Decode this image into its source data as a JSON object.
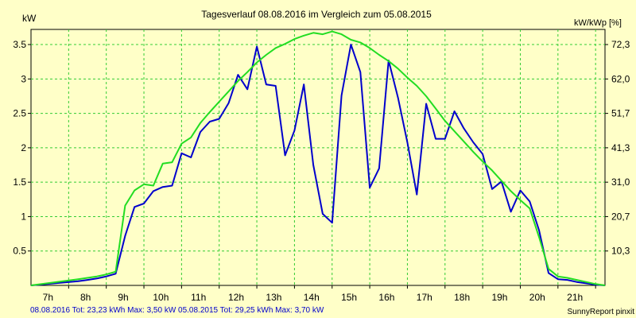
{
  "chart_data": {
    "type": "line",
    "title": "Tagesverlauf 08.08.2016 im Vergleich zum 05.08.2015",
    "ylabel_left": "kW",
    "ylabel_right": "kW/kWp [%]",
    "xlim": [
      6.0,
      21.25
    ],
    "ylim": [
      0,
      3.72
    ],
    "x_ticks": [
      {
        "x": 7,
        "label": "7h"
      },
      {
        "x": 8,
        "label": "8h"
      },
      {
        "x": 9,
        "label": "9h"
      },
      {
        "x": 10,
        "label": "10h"
      },
      {
        "x": 11,
        "label": "11h"
      },
      {
        "x": 12,
        "label": "12h"
      },
      {
        "x": 13,
        "label": "13h"
      },
      {
        "x": 14,
        "label": "14h"
      },
      {
        "x": 15,
        "label": "15h"
      },
      {
        "x": 16,
        "label": "16h"
      },
      {
        "x": 17,
        "label": "17h"
      },
      {
        "x": 18,
        "label": "18h"
      },
      {
        "x": 19,
        "label": "19h"
      },
      {
        "x": 20,
        "label": "20h"
      },
      {
        "x": 21,
        "label": "21h"
      }
    ],
    "y_ticks_left": [
      {
        "y": 0.5,
        "label": "0.5"
      },
      {
        "y": 1,
        "label": "1"
      },
      {
        "y": 1.5,
        "label": "1.5"
      },
      {
        "y": 2,
        "label": "2"
      },
      {
        "y": 2.5,
        "label": "2.5"
      },
      {
        "y": 3,
        "label": "3"
      },
      {
        "y": 3.5,
        "label": "3.5"
      }
    ],
    "y_ticks_right": [
      {
        "y": 0.5,
        "label": "10,3"
      },
      {
        "y": 1,
        "label": "20,7"
      },
      {
        "y": 1.5,
        "label": "31,0"
      },
      {
        "y": 2,
        "label": "41,3"
      },
      {
        "y": 2.5,
        "label": "51,7"
      },
      {
        "y": 3,
        "label": "62,0"
      },
      {
        "y": 3.5,
        "label": "72,3"
      }
    ],
    "grid": true,
    "series": [
      {
        "name": "08.08.2016",
        "color": "#0000CC",
        "x": [
          6.0,
          7.25,
          7.5,
          7.75,
          8.0,
          8.25,
          8.5,
          8.75,
          9.0,
          9.25,
          9.5,
          9.75,
          10.0,
          10.25,
          10.5,
          10.75,
          11.0,
          11.25,
          11.5,
          11.75,
          12.0,
          12.25,
          12.5,
          12.75,
          13.0,
          13.25,
          13.5,
          13.75,
          14.0,
          14.25,
          14.5,
          14.75,
          15.0,
          15.25,
          15.5,
          15.75,
          16.0,
          16.25,
          16.5,
          16.75,
          17.0,
          17.25,
          17.5,
          17.75,
          18.0,
          18.25,
          18.5,
          18.75,
          19.0,
          19.25,
          19.5,
          19.75,
          20.0,
          20.25,
          20.5,
          20.75,
          21.0,
          21.25
        ],
        "y": [
          0.0,
          0.06,
          0.08,
          0.1,
          0.13,
          0.17,
          0.72,
          1.14,
          1.19,
          1.37,
          1.43,
          1.45,
          1.92,
          1.86,
          2.23,
          2.38,
          2.42,
          2.65,
          3.06,
          2.85,
          3.47,
          2.92,
          2.9,
          1.89,
          2.25,
          2.92,
          1.75,
          1.04,
          0.91,
          2.76,
          3.5,
          3.1,
          1.42,
          1.7,
          3.27,
          2.73,
          2.08,
          1.32,
          2.64,
          2.13,
          2.13,
          2.53,
          2.28,
          2.08,
          1.91,
          1.4,
          1.51,
          1.07,
          1.38,
          1.22,
          0.8,
          0.18,
          0.09,
          0.08,
          0.05,
          0.03,
          0.01,
          0.0
        ]
      },
      {
        "name": "05.08.2015",
        "color": "#22DD22",
        "x": [
          6.0,
          7.25,
          7.5,
          7.75,
          8.0,
          8.25,
          8.5,
          8.75,
          9.0,
          9.25,
          9.5,
          9.75,
          10.0,
          10.25,
          10.5,
          10.75,
          11.0,
          11.25,
          11.5,
          11.75,
          12.0,
          12.25,
          12.5,
          12.75,
          13.0,
          13.25,
          13.5,
          13.75,
          14.0,
          14.25,
          14.5,
          14.75,
          15.0,
          15.25,
          15.5,
          15.75,
          16.0,
          16.25,
          16.5,
          16.75,
          17.0,
          17.25,
          17.5,
          17.75,
          18.0,
          18.25,
          18.5,
          18.75,
          19.0,
          19.25,
          19.5,
          19.75,
          20.0,
          20.25,
          20.5,
          20.75,
          21.0,
          21.25
        ],
        "y": [
          0.0,
          0.09,
          0.11,
          0.13,
          0.16,
          0.2,
          1.16,
          1.38,
          1.47,
          1.45,
          1.77,
          1.79,
          2.06,
          2.15,
          2.36,
          2.52,
          2.67,
          2.82,
          2.97,
          3.1,
          3.24,
          3.35,
          3.45,
          3.51,
          3.58,
          3.63,
          3.67,
          3.65,
          3.69,
          3.65,
          3.57,
          3.53,
          3.45,
          3.35,
          3.26,
          3.15,
          3.02,
          2.9,
          2.75,
          2.57,
          2.39,
          2.24,
          2.09,
          1.94,
          1.8,
          1.67,
          1.52,
          1.37,
          1.24,
          1.12,
          0.7,
          0.24,
          0.13,
          0.11,
          0.08,
          0.05,
          0.02,
          0.0
        ]
      }
    ],
    "footer": {
      "legend_text": "08.08.2016 Tot: 23,23 kWh Max: 3,50 kW 05.08.2015 Tot: 29,25 kWh Max: 3,70 kW",
      "credit": "SunnyReport pinxit"
    }
  }
}
